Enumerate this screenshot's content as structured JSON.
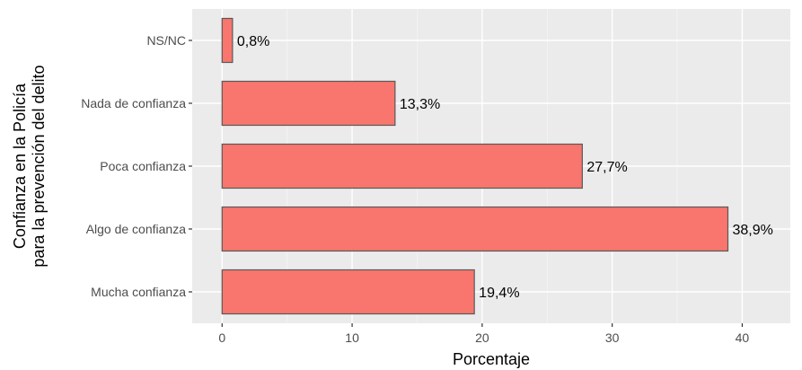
{
  "chart_data": {
    "type": "bar",
    "orientation": "horizontal",
    "title": "",
    "xlabel": "Porcentaje",
    "ylabel_lines": [
      "Confianza en la Policía",
      "para la prevención del delito"
    ],
    "categories": [
      "Mucha confianza",
      "Algo de confianza",
      "Poca confianza",
      "Nada de confianza",
      "NS/NC"
    ],
    "values": [
      19.4,
      38.9,
      27.7,
      13.3,
      0.8
    ],
    "value_labels": [
      "19,4%",
      "38,9%",
      "27,7%",
      "13,3%",
      "0,8%"
    ],
    "xlim": [
      -2.3,
      43.7
    ],
    "xticks": [
      0,
      10,
      20,
      30,
      40
    ],
    "xtick_labels": [
      "0",
      "10",
      "20",
      "30",
      "40"
    ],
    "grid": true,
    "legend": "none",
    "colors": {
      "bar_fill": "#f8766d",
      "bar_stroke": "#595959",
      "panel_bg": "#ebebeb",
      "grid_major": "#ffffff",
      "grid_minor": "#f5f5f5"
    }
  }
}
